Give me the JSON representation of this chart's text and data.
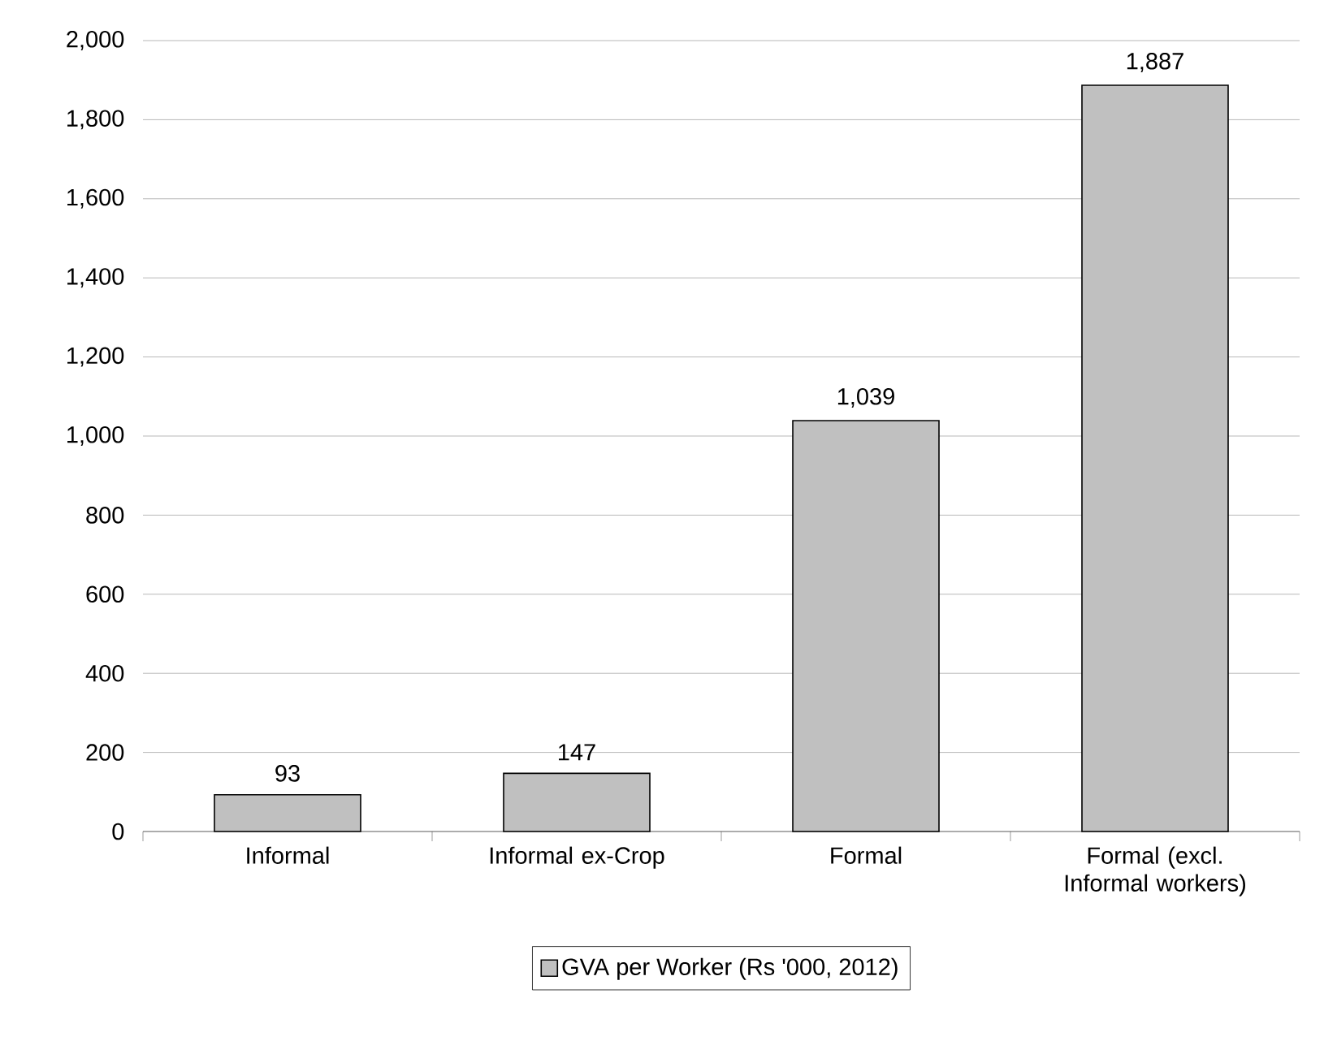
{
  "chart_data": {
    "type": "bar",
    "categories": [
      "Informal",
      "Informal ex-Crop",
      "Formal",
      "Formal (excl. Informal workers)"
    ],
    "series": [
      {
        "name": "GVA per Worker (Rs '000, 2012)",
        "color": "#c0c0c0",
        "values": [
          93,
          147,
          1039,
          1887
        ],
        "value_labels": [
          "93",
          "147",
          "1,039",
          "1,887"
        ]
      }
    ],
    "ylim": [
      0,
      2000
    ],
    "yticks": [
      {
        "value": 0,
        "label": "0"
      },
      {
        "value": 200,
        "label": "200"
      },
      {
        "value": 400,
        "label": "400"
      },
      {
        "value": 600,
        "label": "600"
      },
      {
        "value": 800,
        "label": "800"
      },
      {
        "value": 1000,
        "label": "1,000"
      },
      {
        "value": 1200,
        "label": "1,200"
      },
      {
        "value": 1400,
        "label": "1,400"
      },
      {
        "value": 1600,
        "label": "1,600"
      },
      {
        "value": 1800,
        "label": "1,800"
      },
      {
        "value": 2000,
        "label": "2,000"
      }
    ],
    "grid": "y",
    "legend": "bottom"
  }
}
